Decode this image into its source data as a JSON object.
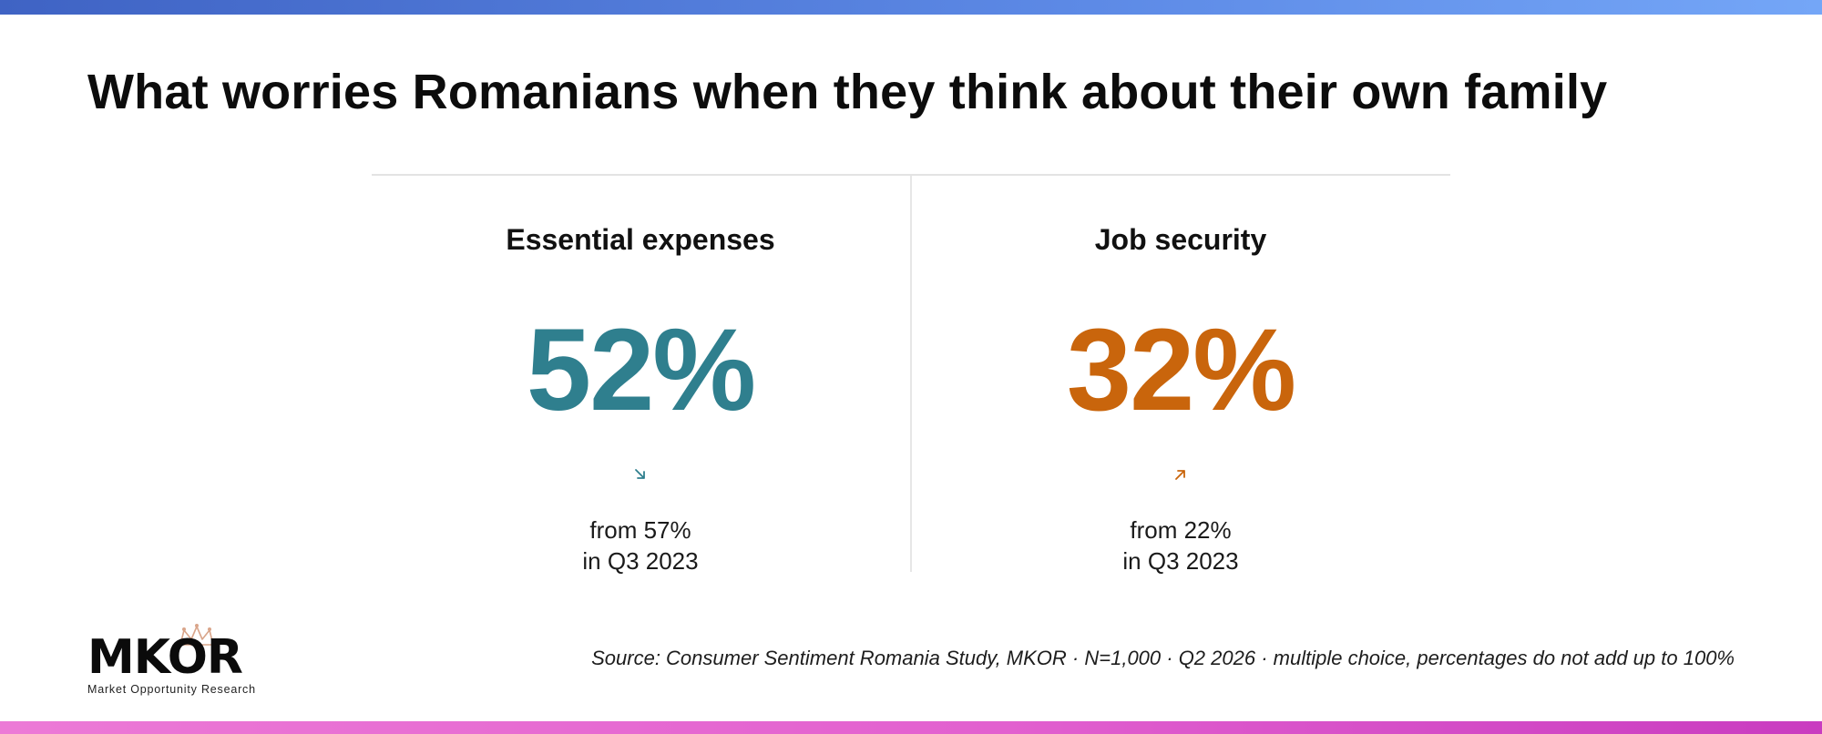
{
  "title": "What worries Romanians when they think about their own family",
  "colors": {
    "top_bar": [
      "#3f63c4",
      "#74a6f7"
    ],
    "bottom_bar": [
      "#ec7ad6",
      "#c93cc0"
    ],
    "teal": "#2f7f8e",
    "orange": "#c9650c"
  },
  "stats": [
    {
      "label": "Essential expenses",
      "value": "52%",
      "trend": "down",
      "trend_icon": "arrow-down-right-icon",
      "from_line": "from 57%",
      "period_line": "in Q3 2023"
    },
    {
      "label": "Job security",
      "value": "32%",
      "trend": "up",
      "trend_icon": "arrow-up-right-icon",
      "from_line": "from 22%",
      "period_line": "in Q3 2023"
    }
  ],
  "logo": {
    "word": "MKOR",
    "tagline": "Market Opportunity Research",
    "icon": "crown-icon"
  },
  "source": "Source: Consumer Sentiment Romania Study, MKOR · N=1,000 · Q2 2026 · multiple choice, percentages do not add up to 100%"
}
